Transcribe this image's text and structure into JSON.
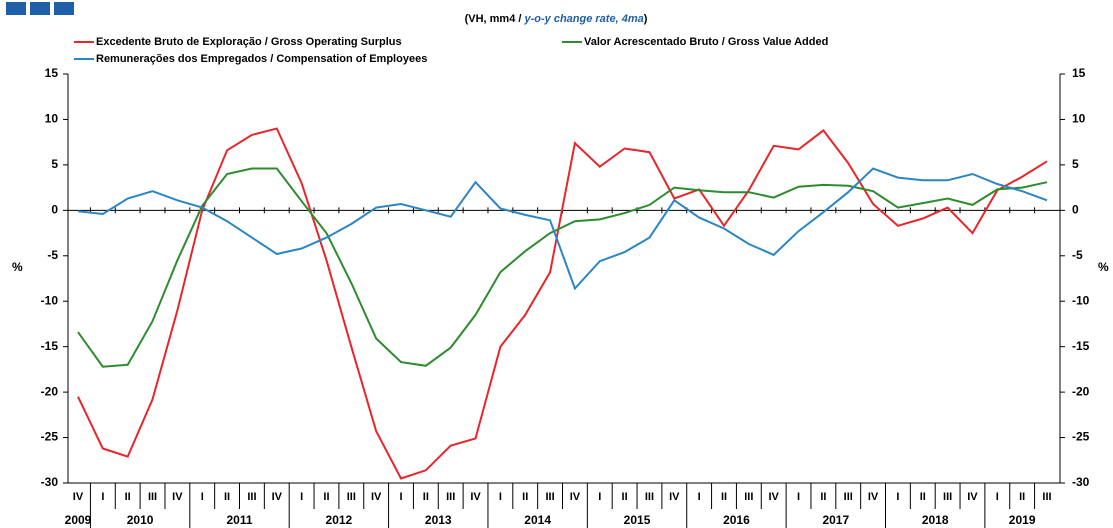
{
  "chart_data": {
    "type": "line",
    "subtitle": [
      "(VH, mm4 / ",
      "y-o-y change rate, 4ma",
      ")"
    ],
    "y_label": "%",
    "categories": [
      "IV",
      "I",
      "II",
      "III",
      "IV",
      "I",
      "II",
      "III",
      "IV",
      "I",
      "II",
      "III",
      "IV",
      "I",
      "II",
      "III",
      "IV",
      "I",
      "II",
      "III",
      "IV",
      "I",
      "II",
      "III",
      "IV",
      "I",
      "II",
      "III",
      "IV",
      "I",
      "II",
      "III",
      "IV",
      "I",
      "II",
      "III",
      "IV",
      "I",
      "II",
      "III"
    ],
    "years": [
      "2009",
      "2010",
      "2011",
      "2012",
      "2013",
      "2014",
      "2015",
      "2016",
      "2017",
      "2018",
      "2019"
    ],
    "ylim": [
      -30,
      15
    ],
    "yticks": [
      -30,
      -25,
      -20,
      -15,
      -10,
      -5,
      0,
      5,
      10,
      15
    ],
    "series": [
      {
        "name": "Excedente Bruto de Exploração / Gross Operating Surplus",
        "color": "#e8262a",
        "values": [
          -20.5,
          -26.2,
          -27.1,
          -20.8,
          -11,
          0,
          6.6,
          8.3,
          9,
          3,
          -5.5,
          -15,
          -24.3,
          -29.5,
          -28.6,
          -25.9,
          -25.1,
          -15,
          -11.5,
          -6.8,
          7.4,
          4.8,
          6.8,
          6.4,
          1.3,
          2.3,
          -1.7,
          2.2,
          7.1,
          6.7,
          8.8,
          5.2,
          0.7,
          -1.7,
          -0.9,
          0.3,
          -2.5,
          2.2,
          3.7,
          5.4
        ]
      },
      {
        "name": "Valor Acrescentado Bruto / Gross Value Added",
        "color": "#2e8b2e",
        "values": [
          -13.4,
          -17.2,
          -17,
          -12.2,
          -5.5,
          0.5,
          4,
          4.6,
          4.6,
          1,
          -2.5,
          -8,
          -14.1,
          -16.7,
          -17.1,
          -15.1,
          -11.5,
          -6.8,
          -4.5,
          -2.5,
          -1.2,
          -1,
          -0.3,
          0.6,
          2.5,
          2.2,
          2,
          2,
          1.4,
          2.6,
          2.8,
          2.7,
          2.1,
          0.3,
          0.8,
          1.3,
          0.6,
          2.3,
          2.5,
          3.1
        ]
      },
      {
        "name": "Remunerações dos Empregados / Compensation of Employees",
        "color": "#2a86c4",
        "values": [
          -0.1,
          -0.4,
          1.3,
          2.1,
          1.1,
          0.3,
          -1.2,
          -3,
          -4.8,
          -4.2,
          -3,
          -1.5,
          0.3,
          0.7,
          0,
          -0.7,
          3.1,
          0.2,
          -0.5,
          -1.1,
          -8.6,
          -5.6,
          -4.6,
          -3,
          1.1,
          -0.8,
          -2,
          -3.7,
          -4.9,
          -2.3,
          -0.2,
          2,
          4.6,
          3.6,
          3.3,
          3.3,
          4,
          2.9,
          2.1,
          1.1
        ]
      }
    ]
  }
}
